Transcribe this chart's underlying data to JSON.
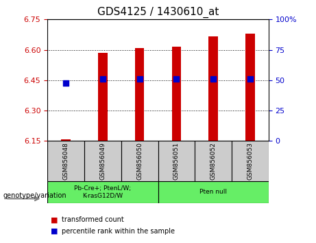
{
  "title": "GDS4125 / 1430610_at",
  "samples": [
    "GSM856048",
    "GSM856049",
    "GSM856050",
    "GSM856051",
    "GSM856052",
    "GSM856053"
  ],
  "red_values": [
    6.158,
    6.585,
    6.61,
    6.615,
    6.665,
    6.68
  ],
  "blue_values": [
    6.435,
    6.455,
    6.455,
    6.455,
    6.455,
    6.455
  ],
  "y_min": 6.15,
  "y_max": 6.75,
  "y_ticks_left": [
    6.15,
    6.3,
    6.45,
    6.6,
    6.75
  ],
  "y_ticks_right_vals": [
    0,
    25,
    50,
    75,
    100
  ],
  "grid_vals": [
    6.3,
    6.45,
    6.6
  ],
  "bar_width": 0.25,
  "bar_bottom": 6.15,
  "bar_color": "#cc0000",
  "dot_color": "#0000cc",
  "dot_size": 28,
  "group0_label": "Pb-Cre+; PtenL/W;\nK-rasG12D/W",
  "group1_label": "Pten null",
  "group_color": "#66ee66",
  "genotype_label": "genotype/variation",
  "legend_red": "transformed count",
  "legend_blue": "percentile rank within the sample",
  "bg_color": "#ffffff",
  "plot_bg": "#ffffff",
  "tick_color_left": "#cc0000",
  "tick_color_right": "#0000cc",
  "sample_box_color": "#cccccc"
}
